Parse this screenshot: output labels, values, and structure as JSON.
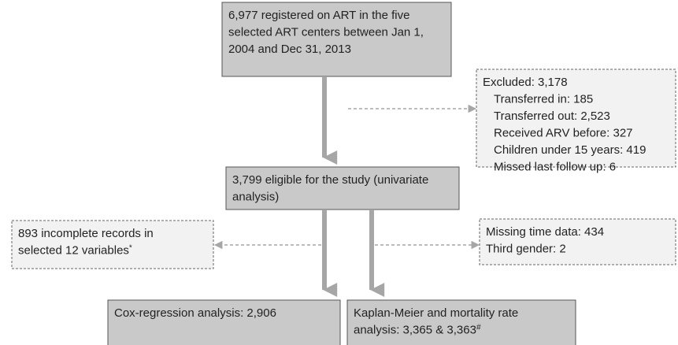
{
  "nodes": [
    {
      "lines": [
        "6,977 registered on ART in the five",
        "selected ART centers between Jan 1,",
        "2004 and Dec 31, 2013"
      ]
    },
    {
      "lines": [
        "Excluded: 3,178",
        "Transferred in: 185",
        "Transferred out: 2,523",
        "Received ARV before: 327",
        "Children under 15 years: 419",
        "Missed last follow up: 6"
      ]
    },
    {
      "lines": [
        "3,799 eligible for the study (univariate",
        "analysis)"
      ]
    },
    {
      "lines": [
        "893 incomplete records in",
        "selected 12 variables"
      ],
      "mark": "*"
    },
    {
      "lines": [
        "Missing time data: 434",
        "Third gender: 2"
      ]
    },
    {
      "lines": [
        "Cox-regression analysis: 2,906"
      ]
    },
    {
      "lines": [
        "Kaplan-Meier and mortality rate",
        "analysis: 3,365 & 3,363"
      ],
      "mark": "#"
    }
  ]
}
